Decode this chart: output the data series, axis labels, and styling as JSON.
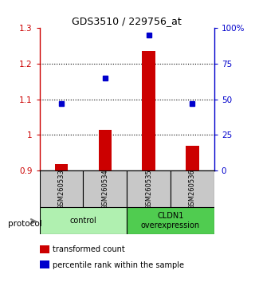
{
  "title": "GDS3510 / 229756_at",
  "samples": [
    "GSM260533",
    "GSM260534",
    "GSM260535",
    "GSM260536"
  ],
  "bar_values": [
    0.918,
    1.015,
    1.235,
    0.97
  ],
  "bar_baseline": 0.9,
  "bar_color": "#cc0000",
  "dot_values_pct": [
    47,
    65,
    95,
    47
  ],
  "dot_color": "#0000cc",
  "ylim_left": [
    0.9,
    1.3
  ],
  "ylim_right": [
    0,
    100
  ],
  "yticks_left": [
    0.9,
    1.0,
    1.1,
    1.2,
    1.3
  ],
  "yticks_right": [
    0,
    25,
    50,
    75,
    100
  ],
  "ytick_labels_left": [
    "0.9",
    "1",
    "1.1",
    "1.2",
    "1.3"
  ],
  "ytick_labels_right": [
    "0",
    "25",
    "50",
    "75",
    "100%"
  ],
  "gridlines": [
    1.0,
    1.1,
    1.2
  ],
  "groups": [
    {
      "label": "control",
      "samples": [
        0,
        1
      ],
      "color": "#b0f0b0"
    },
    {
      "label": "CLDN1\noverexpression",
      "samples": [
        2,
        3
      ],
      "color": "#50cc50"
    }
  ],
  "protocol_label": "protocol",
  "legend_items": [
    {
      "color": "#cc0000",
      "label": "transformed count"
    },
    {
      "color": "#0000cc",
      "label": "percentile rank within the sample"
    }
  ],
  "background_color": "#ffffff",
  "sample_box_color": "#c8c8c8",
  "left_tick_color": "#cc0000",
  "right_tick_color": "#0000cc"
}
